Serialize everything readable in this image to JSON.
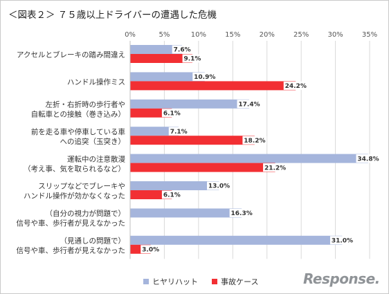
{
  "title": "＜図表２＞ ７５歳以上ドライバーの遭遇した危機",
  "watermark": "Response.",
  "colors": {
    "series1": "#a5b5dc",
    "series2": "#f22f33",
    "grid": "#d9d9d9"
  },
  "chart_data": {
    "type": "bar",
    "orientation": "horizontal",
    "categories": [
      [
        "アクセルとブレーキの踏み間違え"
      ],
      [
        "ハンドル操作ミス"
      ],
      [
        "左折・右折時の歩行者や",
        "自転車との接触（巻き込み）"
      ],
      [
        "前を走る車や停車している車",
        "への追突（玉突き）"
      ],
      [
        "運転中の注意散漫",
        "（考え事、気を取られるなど）"
      ],
      [
        "スリップなどでブレーキや",
        "ハンドル操作が効かなくなった"
      ],
      [
        "（自分の視力が問題で）",
        "信号や車、歩行者が見えなかった"
      ],
      [
        "（見通しの問題で）",
        "信号や車、歩行者が見えなかった"
      ]
    ],
    "series": [
      {
        "name": "ヒヤリハット",
        "color": "#a5b5dc",
        "values": [
          7.6,
          10.9,
          17.4,
          7.1,
          34.8,
          13.0,
          16.3,
          31.0
        ],
        "labels": [
          "7.6%",
          "10.9%",
          "17.4%",
          "7.1%",
          "34.8%",
          "13.0%",
          "16.3%",
          "31.0%"
        ]
      },
      {
        "name": "事故ケース",
        "color": "#f22f33",
        "values": [
          9.1,
          24.2,
          6.1,
          18.2,
          21.2,
          6.1,
          null,
          3.0
        ],
        "labels": [
          "9.1%",
          "24.2%",
          "6.1%",
          "18.2%",
          "21.2%",
          "6.1%",
          null,
          "3.0%"
        ]
      }
    ],
    "xlim": [
      0,
      35
    ],
    "xticks": [
      0,
      5,
      10,
      15,
      20,
      25,
      30,
      35
    ],
    "xtick_labels": [
      "0%",
      "5%",
      "10%",
      "15%",
      "20%",
      "25%",
      "30%",
      "35%"
    ],
    "grid": true,
    "legend": "bottom"
  }
}
